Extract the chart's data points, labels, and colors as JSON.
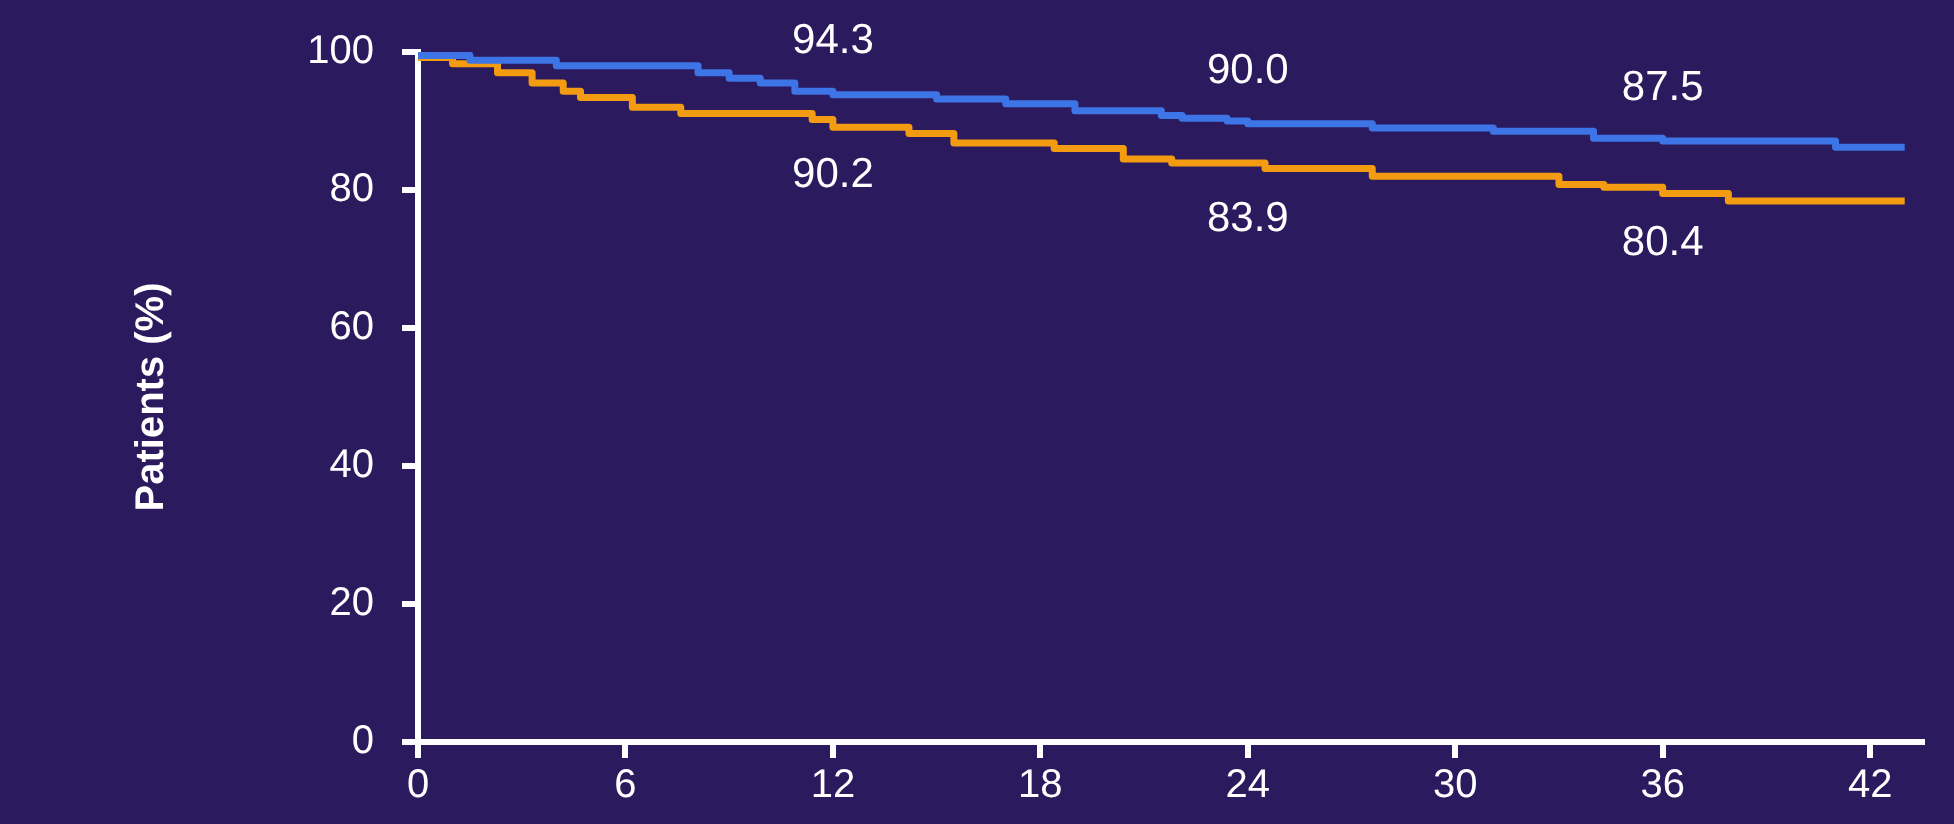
{
  "chart_data": {
    "type": "step",
    "ylabel": "Patients (%)",
    "xlim": [
      0,
      43.5
    ],
    "xticks": [
      0,
      6,
      12,
      18,
      24,
      30,
      36,
      42
    ],
    "ylim": [
      0,
      100
    ],
    "yticks": [
      0,
      20,
      40,
      60,
      80,
      100
    ],
    "grid": false,
    "legend": false,
    "marker": "none",
    "series": [
      {
        "color": "#3d75e6",
        "x": [
          0,
          1.5,
          4,
          8.1,
          9,
          9.9,
          10.9,
          12,
          15,
          17,
          19,
          21.5,
          22.1,
          23.4,
          24,
          27.6,
          31.1,
          34,
          36,
          41,
          43
        ],
        "values": [
          100,
          99.5,
          98.8,
          98,
          97,
          96.2,
          95.5,
          94.3,
          93.8,
          93.2,
          92.5,
          91.5,
          90.8,
          90.4,
          90.0,
          89.6,
          89,
          88.5,
          87.5,
          87.1,
          86.2
        ]
      },
      {
        "color": "#f39c12",
        "x": [
          0,
          1,
          2.3,
          3.3,
          4.2,
          4.7,
          6.2,
          7.6,
          11.4,
          12,
          14.2,
          15.5,
          18.4,
          20.4,
          21.8,
          24.5,
          27.6,
          33,
          34.3,
          36,
          37.9,
          42,
          43
        ],
        "values": [
          100,
          99.2,
          98.3,
          97,
          95.5,
          94.3,
          93.4,
          92,
          91.1,
          90.2,
          89.1,
          88.2,
          86.8,
          86,
          84.5,
          83.9,
          83.1,
          82,
          80.8,
          80.4,
          79.5,
          78.4,
          78.4
        ]
      }
    ],
    "annotations": [
      {
        "text": "94.3",
        "x": 12,
        "y": 94.3
      },
      {
        "text": "90.0",
        "x": 24,
        "y": 90.0
      },
      {
        "text": "87.5",
        "x": 36,
        "y": 87.5
      },
      {
        "text": "90.2",
        "x": 12,
        "y": 90.2
      },
      {
        "text": "83.9",
        "x": 24,
        "y": 83.9
      },
      {
        "text": "80.4",
        "x": 36,
        "y": 80.4
      }
    ]
  }
}
